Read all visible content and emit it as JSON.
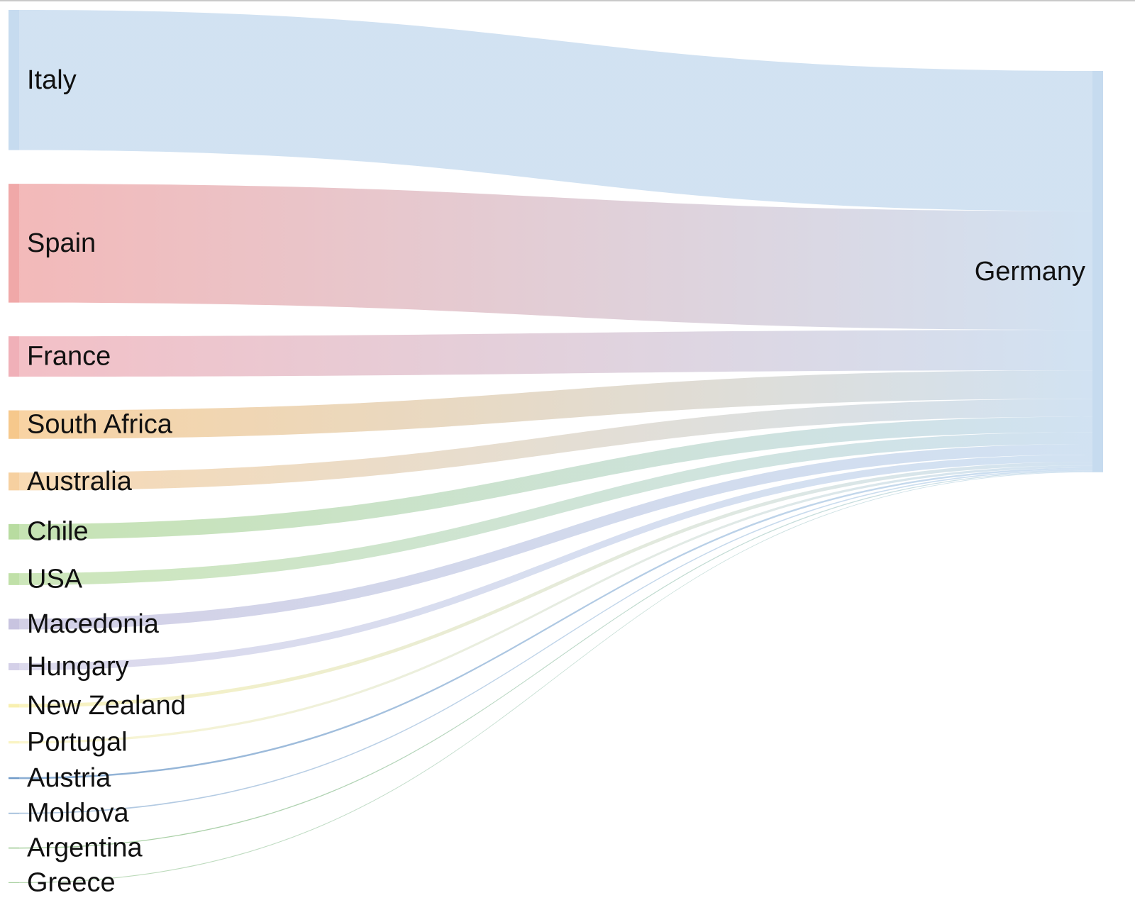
{
  "chart_data": {
    "type": "sankey",
    "target": {
      "name": "Germany",
      "color": "#c6dbef"
    },
    "sources": [
      {
        "name": "Italy",
        "value": 118,
        "color": "#c6dbef"
      },
      {
        "name": "Spain",
        "value": 100,
        "color": "#f0a8a8"
      },
      {
        "name": "France",
        "value": 34,
        "color": "#f0b0b8"
      },
      {
        "name": "South Africa",
        "value": 24,
        "color": "#f6c88c"
      },
      {
        "name": "Australia",
        "value": 15,
        "color": "#f6d0a0"
      },
      {
        "name": "Chile",
        "value": 13,
        "color": "#b8dca0"
      },
      {
        "name": "USA",
        "value": 10,
        "color": "#c0e0a8"
      },
      {
        "name": "Macedonia",
        "value": 9,
        "color": "#c8c4e0"
      },
      {
        "name": "Hungary",
        "value": 6,
        "color": "#d4d0e8"
      },
      {
        "name": "New Zealand",
        "value": 3,
        "color": "#f8f0b0"
      },
      {
        "name": "Portugal",
        "value": 2,
        "color": "#faf4c4"
      },
      {
        "name": "Austria",
        "value": 1.5,
        "color": "#6f9ac8"
      },
      {
        "name": "Moldova",
        "value": 1,
        "color": "#9ab8d8"
      },
      {
        "name": "Argentina",
        "value": 0.8,
        "color": "#8cc080"
      },
      {
        "name": "Greece",
        "value": 0.5,
        "color": "#a8d0a0"
      }
    ]
  }
}
